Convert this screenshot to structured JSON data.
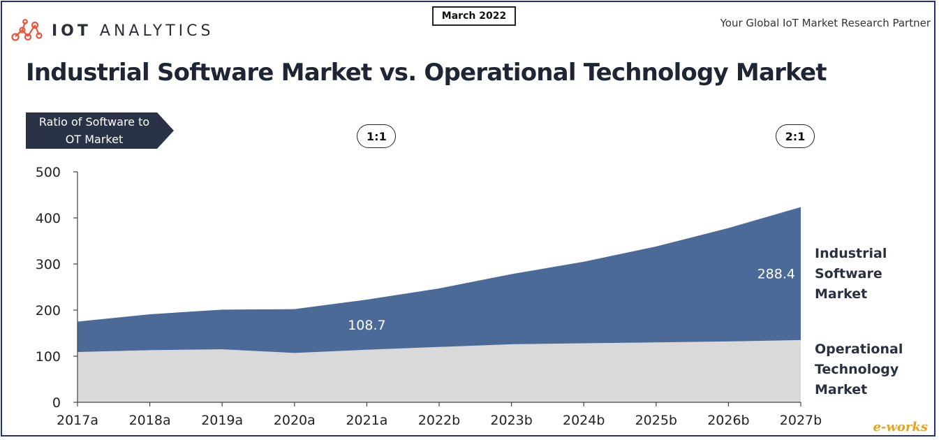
{
  "header": {
    "brand": "IOT ANALYTICS",
    "brand_bold": "IOT",
    "brand_light": "ANALYTICS",
    "date": "March 2022",
    "tagline": "Your Global IoT Market Research Partner"
  },
  "ratio": {
    "tag_line1": "Ratio of Software to",
    "tag_line2": "OT Market",
    "pills": [
      {
        "label": "1:1",
        "at": "2021a"
      },
      {
        "label": "2:1",
        "at": "2027b"
      }
    ]
  },
  "watermark": "e-works",
  "colors": {
    "software": "#4b6a98",
    "ot": "#d9d9d9",
    "dark": "#2a3346"
  },
  "chart_data": {
    "type": "area",
    "title": "Industrial Software Market vs. Operational Technology Market",
    "x": [
      "2017a",
      "2018a",
      "2019a",
      "2020a",
      "2021a",
      "2022b",
      "2023b",
      "2024b",
      "2025b",
      "2026b",
      "2027b"
    ],
    "ylim": [
      0,
      500
    ],
    "yticks": [
      0,
      100,
      200,
      300,
      400,
      500
    ],
    "stacked": true,
    "series": [
      {
        "name": "Operational Technology Market",
        "values": [
          109,
          113,
          115,
          107,
          114,
          120,
          126,
          128,
          130,
          132,
          135
        ]
      },
      {
        "name": "Industrial Software Market",
        "values": [
          66,
          78,
          86,
          95,
          108.7,
          127,
          152,
          177,
          208,
          246,
          288.4
        ]
      }
    ],
    "data_labels": [
      {
        "series": "Industrial Software Market",
        "x": "2021a",
        "text": "108.7"
      },
      {
        "series": "Industrial Software Market",
        "x": "2027b",
        "text": "288.4"
      }
    ],
    "grid": false,
    "legend": "right-inline"
  }
}
